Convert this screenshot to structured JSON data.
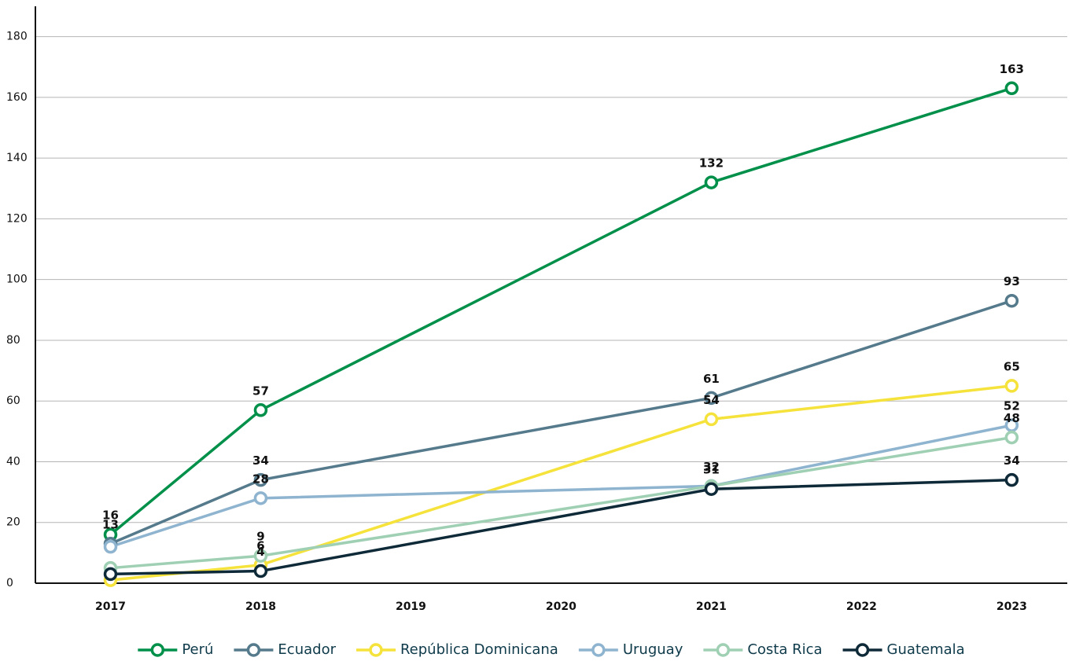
{
  "chart_data": {
    "type": "line",
    "x": [
      2017,
      2018,
      2021,
      2023
    ],
    "xlim": [
      2016.5,
      2023.37
    ],
    "xticks": [
      2017,
      2018,
      2019,
      2020,
      2021,
      2022,
      2023
    ],
    "ylim": [
      0,
      190
    ],
    "yticks": [
      0,
      20,
      40,
      60,
      80,
      100,
      120,
      140,
      160,
      180
    ],
    "grid": true,
    "series": [
      {
        "name": "Perú",
        "color": "#00904a",
        "values": [
          16,
          57,
          132,
          163
        ],
        "value_labels": [
          "16",
          "57",
          "132",
          "163"
        ]
      },
      {
        "name": "Ecuador",
        "color": "#557a8c",
        "values": [
          13,
          34,
          61,
          93
        ],
        "value_labels": [
          "13",
          "34",
          "61",
          "93"
        ]
      },
      {
        "name": "República Dominicana",
        "color": "#f5e23a",
        "values": [
          1,
          6,
          54,
          65
        ],
        "value_labels": [
          null,
          "6",
          "54",
          "65"
        ]
      },
      {
        "name": "Uruguay",
        "color": "#8fb4cf",
        "values": [
          12,
          28,
          32,
          52
        ],
        "value_labels": [
          null,
          "28",
          "32",
          "52"
        ]
      },
      {
        "name": "Costa Rica",
        "color": "#9fd0b4",
        "values": [
          5,
          9,
          32,
          48
        ],
        "value_labels": [
          null,
          "9",
          null,
          "48"
        ]
      },
      {
        "name": "Guatemala",
        "color": "#0e2a38",
        "values": [
          3,
          4,
          31,
          34
        ],
        "value_labels": [
          null,
          "4",
          "31",
          "34"
        ]
      }
    ]
  }
}
